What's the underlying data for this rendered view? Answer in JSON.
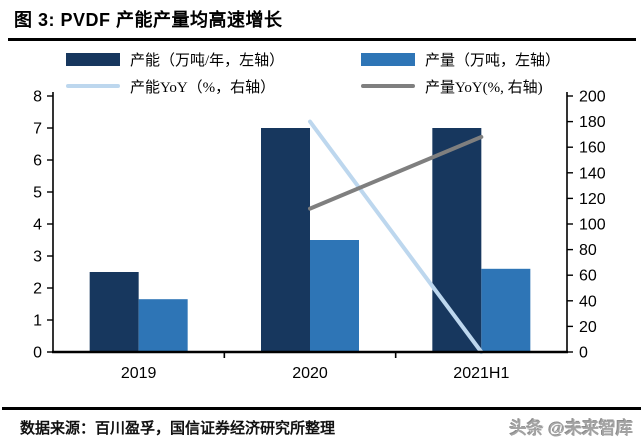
{
  "title": "图 3: PVDF 产能产量均高速增长",
  "source_note": "数据来源：百川盈孚，国信证券经济研究所整理",
  "watermark": "头条 @未来智库",
  "colors": {
    "capacity_bar": "#17375E",
    "output_bar": "#2E75B6",
    "capacity_yoy_line": "#BDD7EE",
    "output_yoy_line": "#7F7F7F",
    "axis": "#000000",
    "rule": "#000000",
    "watermark_gray": "#a3a3a3"
  },
  "chart_data": {
    "type": "combo-bar-line",
    "categories": [
      "2019",
      "2020",
      "2021H1"
    ],
    "series": [
      {
        "name": "产能（万吨/年，左轴）",
        "kind": "bar",
        "axis": "left",
        "color": "#17375E",
        "values": [
          2.5,
          7.0,
          7.0
        ]
      },
      {
        "name": "产量（万吨，左轴）",
        "kind": "bar",
        "axis": "left",
        "color": "#2E75B6",
        "values": [
          1.65,
          3.5,
          2.6
        ]
      },
      {
        "name": "产能YoY（%，右轴）",
        "kind": "line",
        "axis": "right",
        "color": "#BDD7EE",
        "values": [
          null,
          180,
          0
        ]
      },
      {
        "name": "产量YoY(%, 右轴)",
        "kind": "line",
        "axis": "right",
        "color": "#7F7F7F",
        "values": [
          null,
          112,
          168
        ]
      }
    ],
    "left_axis": {
      "min": 0,
      "max": 8,
      "step": 1,
      "ticks": [
        0,
        1,
        2,
        3,
        4,
        5,
        6,
        7,
        8
      ]
    },
    "right_axis": {
      "min": 0,
      "max": 200,
      "step": 20,
      "ticks": [
        0,
        20,
        40,
        60,
        80,
        100,
        120,
        140,
        160,
        180,
        200
      ]
    },
    "legend_position": "top",
    "grid": false
  }
}
